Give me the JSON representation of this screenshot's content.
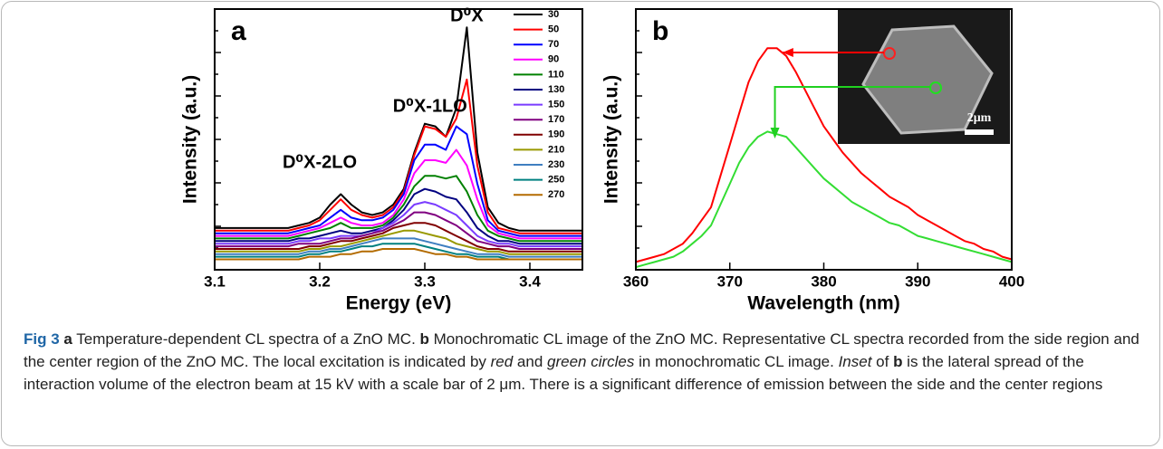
{
  "chart_data": [
    {
      "type": "line",
      "panel_label": "a",
      "xlabel": "Energy (eV)",
      "ylabel": "Intensity (a.u.)",
      "x": [
        3.1,
        3.11,
        3.12,
        3.13,
        3.14,
        3.15,
        3.16,
        3.17,
        3.18,
        3.19,
        3.2,
        3.21,
        3.22,
        3.23,
        3.24,
        3.25,
        3.26,
        3.27,
        3.28,
        3.29,
        3.3,
        3.31,
        3.32,
        3.33,
        3.34,
        3.35,
        3.36,
        3.37,
        3.38,
        3.39,
        3.4,
        3.41,
        3.42,
        3.43,
        3.44,
        3.45
      ],
      "xlim": [
        3.1,
        3.45
      ],
      "xticks": [
        3.1,
        3.2,
        3.3,
        3.4
      ],
      "ylim": [
        0,
        100
      ],
      "legend": "upper right",
      "annotations": [
        "D⁰X",
        "D⁰X-1LO",
        "D⁰X-2LO"
      ],
      "series": [
        {
          "name": "30",
          "color": "#000000",
          "values": [
            16,
            16,
            16,
            16,
            16,
            16,
            16,
            16,
            17,
            18,
            20,
            25,
            29,
            25,
            22,
            21,
            22,
            25,
            31,
            45,
            56,
            55,
            51,
            62,
            93,
            45,
            24,
            18,
            16,
            15,
            15,
            15,
            15,
            15,
            15,
            15
          ]
        },
        {
          "name": "50",
          "color": "#ff0000",
          "values": [
            15,
            15,
            15,
            15,
            15,
            15,
            15,
            15,
            16,
            17,
            19,
            23,
            27,
            23,
            21,
            20,
            21,
            24,
            30,
            44,
            55,
            54,
            51,
            58,
            73,
            40,
            22,
            16,
            15,
            14,
            14,
            14,
            14,
            14,
            14,
            14
          ]
        },
        {
          "name": "70",
          "color": "#0000ff",
          "values": [
            14,
            14,
            14,
            14,
            14,
            14,
            14,
            14,
            15,
            16,
            17,
            20,
            23,
            20,
            19,
            19,
            20,
            23,
            29,
            42,
            48,
            48,
            46,
            55,
            52,
            33,
            19,
            15,
            14,
            13,
            13,
            13,
            13,
            13,
            13,
            13
          ]
        },
        {
          "name": "90",
          "color": "#ff00ff",
          "values": [
            13,
            13,
            13,
            13,
            13,
            13,
            13,
            13,
            14,
            15,
            16,
            18,
            20,
            18,
            17,
            17,
            18,
            21,
            27,
            37,
            42,
            42,
            41,
            46,
            40,
            27,
            17,
            14,
            13,
            12,
            12,
            12,
            12,
            12,
            12,
            12
          ]
        },
        {
          "name": "110",
          "color": "#008000",
          "values": [
            12,
            12,
            12,
            12,
            12,
            12,
            12,
            12,
            13,
            14,
            15,
            16,
            18,
            16,
            16,
            16,
            17,
            20,
            25,
            32,
            36,
            36,
            35,
            36,
            30,
            21,
            15,
            13,
            12,
            11,
            11,
            11,
            11,
            11,
            11,
            11
          ]
        },
        {
          "name": "130",
          "color": "#000080",
          "values": [
            11,
            11,
            11,
            11,
            11,
            11,
            11,
            11,
            12,
            12,
            13,
            14,
            15,
            14,
            14,
            15,
            16,
            19,
            23,
            29,
            31,
            30,
            28,
            27,
            22,
            16,
            13,
            11,
            11,
            10,
            10,
            10,
            10,
            10,
            10,
            10
          ]
        },
        {
          "name": "150",
          "color": "#7a3cff",
          "values": [
            10,
            10,
            10,
            10,
            10,
            10,
            10,
            10,
            11,
            11,
            12,
            12,
            13,
            13,
            13,
            14,
            16,
            18,
            21,
            25,
            26,
            25,
            23,
            21,
            17,
            13,
            11,
            10,
            10,
            9,
            9,
            9,
            9,
            9,
            9,
            9
          ]
        },
        {
          "name": "170",
          "color": "#800080",
          "values": [
            9,
            9,
            9,
            9,
            9,
            9,
            9,
            9,
            10,
            10,
            10,
            11,
            12,
            12,
            13,
            14,
            15,
            17,
            19,
            22,
            22,
            21,
            19,
            17,
            14,
            11,
            10,
            9,
            9,
            8,
            8,
            8,
            8,
            8,
            8,
            8
          ]
        },
        {
          "name": "190",
          "color": "#800000",
          "values": [
            8,
            8,
            8,
            8,
            8,
            8,
            8,
            8,
            8,
            9,
            9,
            10,
            11,
            11,
            12,
            13,
            14,
            16,
            17,
            18,
            18,
            17,
            15,
            13,
            11,
            9,
            8,
            8,
            7,
            7,
            7,
            7,
            7,
            7,
            7,
            7
          ]
        },
        {
          "name": "210",
          "color": "#999900",
          "values": [
            7,
            7,
            7,
            7,
            7,
            7,
            7,
            7,
            7,
            8,
            8,
            9,
            9,
            10,
            11,
            12,
            13,
            14,
            15,
            15,
            14,
            13,
            12,
            10,
            9,
            8,
            7,
            7,
            6,
            6,
            6,
            6,
            6,
            6,
            6,
            6
          ]
        },
        {
          "name": "230",
          "color": "#3f7fc0",
          "values": [
            6,
            6,
            6,
            6,
            6,
            6,
            6,
            6,
            6,
            7,
            7,
            8,
            8,
            9,
            10,
            11,
            12,
            12,
            12,
            12,
            11,
            10,
            9,
            8,
            7,
            6,
            6,
            6,
            5,
            5,
            5,
            5,
            5,
            5,
            5,
            5
          ]
        },
        {
          "name": "250",
          "color": "#008080",
          "values": [
            5,
            5,
            5,
            5,
            5,
            5,
            5,
            5,
            5,
            6,
            6,
            7,
            7,
            8,
            9,
            9,
            10,
            10,
            10,
            10,
            9,
            8,
            7,
            6,
            6,
            5,
            5,
            5,
            4,
            4,
            4,
            4,
            4,
            4,
            4,
            4
          ]
        },
        {
          "name": "270",
          "color": "#b36b00",
          "values": [
            4,
            4,
            4,
            4,
            4,
            4,
            4,
            4,
            4,
            5,
            5,
            5,
            6,
            6,
            7,
            7,
            8,
            8,
            8,
            8,
            7,
            6,
            6,
            5,
            5,
            4,
            4,
            4,
            4,
            4,
            4,
            4,
            4,
            4,
            4,
            4
          ]
        }
      ]
    },
    {
      "type": "line",
      "panel_label": "b",
      "xlabel": "Wavelength (nm)",
      "ylabel": "Intensity (a.u.)",
      "x": [
        360,
        361,
        362,
        363,
        364,
        365,
        366,
        367,
        368,
        369,
        370,
        371,
        372,
        373,
        374,
        375,
        376,
        377,
        378,
        379,
        380,
        381,
        382,
        383,
        384,
        385,
        386,
        387,
        388,
        389,
        390,
        391,
        392,
        393,
        394,
        395,
        396,
        397,
        398,
        399,
        400
      ],
      "xlim": [
        360,
        400
      ],
      "xticks": [
        360,
        370,
        380,
        390,
        400
      ],
      "ylim": [
        0,
        100
      ],
      "inset_label": "2μm",
      "series": [
        {
          "color": "#ff0000",
          "values": [
            3,
            4,
            5,
            6,
            8,
            10,
            14,
            19,
            24,
            36,
            48,
            60,
            72,
            80,
            85,
            85,
            82,
            76,
            69,
            62,
            55,
            50,
            45,
            41,
            37,
            34,
            31,
            28,
            26,
            24,
            21,
            19,
            17,
            15,
            13,
            11,
            10,
            8,
            7,
            5,
            4
          ]
        },
        {
          "color": "#33dd33",
          "values": [
            1,
            2,
            3,
            4,
            5,
            7,
            10,
            13,
            17,
            25,
            33,
            41,
            47,
            51,
            53,
            52,
            51,
            47,
            43,
            39,
            35,
            32,
            29,
            26,
            24,
            22,
            20,
            18,
            17,
            15,
            13,
            12,
            11,
            10,
            9,
            8,
            7,
            6,
            5,
            4,
            3
          ]
        }
      ]
    }
  ],
  "caption": {
    "fig": "Fig 3",
    "a": "a",
    "text_a": " Temperature-dependent CL spectra of a ZnO MC. ",
    "b": "b",
    "text_b": " Monochromatic CL image of the ZnO MC. Representative CL spectra recorded from the side region and the center region of the ZnO MC. The local excitation is indicated by ",
    "red": "red",
    "and": " and ",
    "green": "green circles",
    "text_c": " in monochromatic CL image. ",
    "inset": "Inset",
    "of": " of ",
    "b2": "b",
    "text_d": " is the lateral spread of the interaction volume of the electron beam at 15 kV with a scale bar of 2 μm. There is a significant difference of emission between the side and the center regions"
  }
}
